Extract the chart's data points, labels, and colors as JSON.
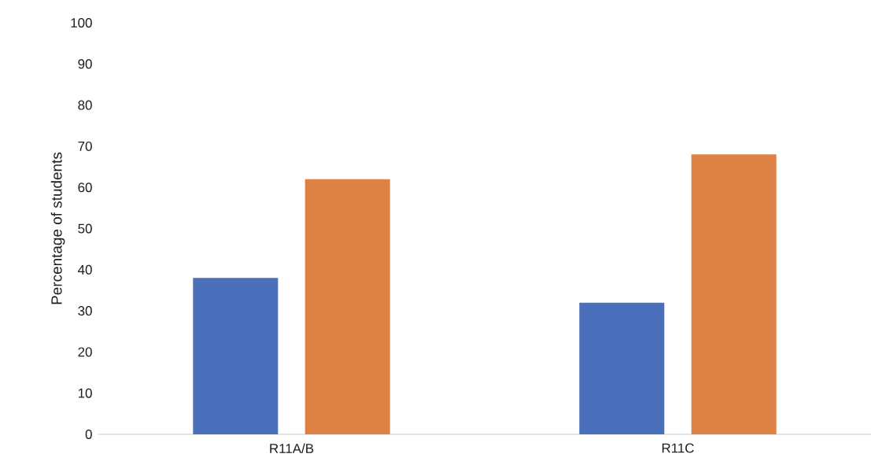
{
  "chart_data": {
    "type": "bar",
    "ylabel": "Percentage of students",
    "categories": [
      "R11A/B",
      "R11C"
    ],
    "series": [
      {
        "color": "#4a70bb",
        "values": [
          38,
          32
        ]
      },
      {
        "color": "#dd8144",
        "values": [
          62,
          68
        ]
      }
    ],
    "ylim": [
      0,
      100
    ],
    "yticks": [
      0,
      10,
      20,
      30,
      40,
      50,
      60,
      70,
      80,
      90,
      100
    ]
  }
}
